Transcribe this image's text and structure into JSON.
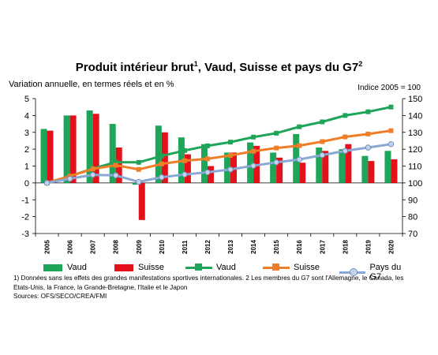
{
  "title": "Produit intérieur brut",
  "title_sup1": "1",
  "title_mid": ", Vaud, Suisse et pays du G7",
  "title_sup2": "2",
  "left_axis_label": "Variation annuelle, en termes réels et en %",
  "right_axis_label": "Indice 2005 = 100",
  "legend": {
    "vaud_bar": "Vaud",
    "suisse_bar": "Suisse",
    "vaud_line": "Vaud",
    "suisse_line": "Suisse",
    "g7_line": "Pays du G7"
  },
  "footnote": "1) Données sans les effets des grandes manifestations sportives internationales.  2 Les membres du G7 sont l'Allemagne, le Canada, les Etats-Unis, la France, la Grande-Bretagne, l'Italie et le Japon",
  "source": "Sources: OFS/SECO/CREA/FMI",
  "chart_data": {
    "type": "bar+line",
    "categories": [
      "2005",
      "2006",
      "2007",
      "2008",
      "2009",
      "2010",
      "2011",
      "2012",
      "2013",
      "2014",
      "2015",
      "2016",
      "2017",
      "2018",
      "2019",
      "2020"
    ],
    "left_axis": {
      "ylim": [
        -3,
        5
      ],
      "ticks": [
        -3,
        -2,
        -1,
        0,
        1,
        2,
        3,
        4,
        5
      ]
    },
    "right_axis": {
      "ylim": [
        70,
        150
      ],
      "ticks": [
        70,
        80,
        90,
        100,
        110,
        120,
        130,
        140,
        150
      ]
    },
    "bar_series": [
      {
        "name": "Vaud",
        "color": "#1fa55a",
        "values": [
          3.2,
          4.0,
          4.3,
          3.5,
          -0.1,
          3.4,
          2.7,
          2.3,
          1.8,
          2.4,
          1.8,
          2.9,
          2.1,
          2.0,
          1.6,
          1.9
        ]
      },
      {
        "name": "Suisse",
        "color": "#e3121a",
        "values": [
          3.1,
          4.0,
          4.1,
          2.1,
          -2.2,
          3.0,
          1.7,
          1.0,
          1.8,
          2.2,
          1.5,
          1.2,
          1.9,
          2.3,
          1.3,
          1.4
        ]
      }
    ],
    "line_series": [
      {
        "name": "Vaud",
        "color": "#1fa55a",
        "marker": "square",
        "values": [
          100,
          104,
          108.5,
          112.3,
          112.2,
          116.0,
          119.2,
          122.0,
          124.2,
          127.2,
          129.5,
          133.3,
          136.2,
          140.0,
          142.2,
          145.0
        ]
      },
      {
        "name": "Suisse",
        "color": "#f07d28",
        "marker": "square",
        "values": [
          100,
          104.0,
          108.3,
          110.5,
          108.0,
          111.3,
          113.2,
          114.3,
          116.3,
          118.8,
          120.7,
          122.1,
          124.5,
          127.3,
          129.0,
          131.0
        ]
      },
      {
        "name": "Pays du G7",
        "color": "#8aa8d4",
        "marker": "circle",
        "values": [
          100,
          102.5,
          104.8,
          104.5,
          100.6,
          103.4,
          105.0,
          106.3,
          108.0,
          110.2,
          112.2,
          113.9,
          116.5,
          119.0,
          121.0,
          123.0
        ]
      }
    ]
  }
}
